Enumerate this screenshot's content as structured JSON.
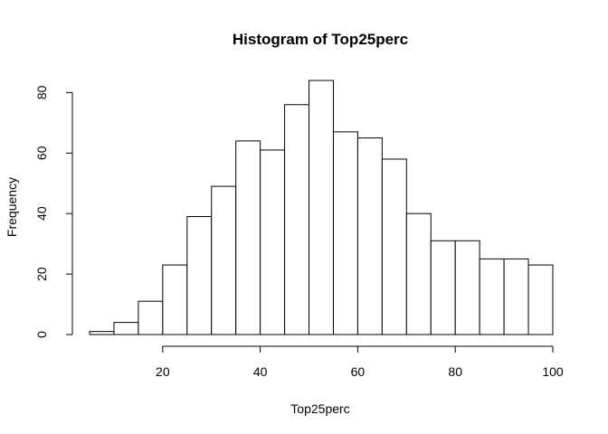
{
  "chart_data": {
    "type": "bar",
    "title": "Histogram of Top25perc",
    "xlabel": "Top25perc",
    "ylabel": "Frequency",
    "bin_edges": [
      5,
      10,
      15,
      20,
      25,
      30,
      35,
      40,
      45,
      50,
      55,
      60,
      65,
      70,
      75,
      80,
      85,
      90,
      95,
      100
    ],
    "values": [
      1,
      4,
      11,
      23,
      39,
      49,
      64,
      61,
      76,
      84,
      67,
      65,
      58,
      40,
      31,
      31,
      25,
      25,
      23
    ],
    "xlim": [
      5,
      100
    ],
    "ylim": [
      0,
      84
    ],
    "x_ticks": [
      "20",
      "40",
      "60",
      "80",
      "100"
    ],
    "y_ticks": [
      "0",
      "20",
      "40",
      "60",
      "80"
    ],
    "grid": false,
    "legend": "none",
    "colors": {
      "bar_fill": "#ffffff",
      "bar_stroke": "#000000"
    }
  }
}
